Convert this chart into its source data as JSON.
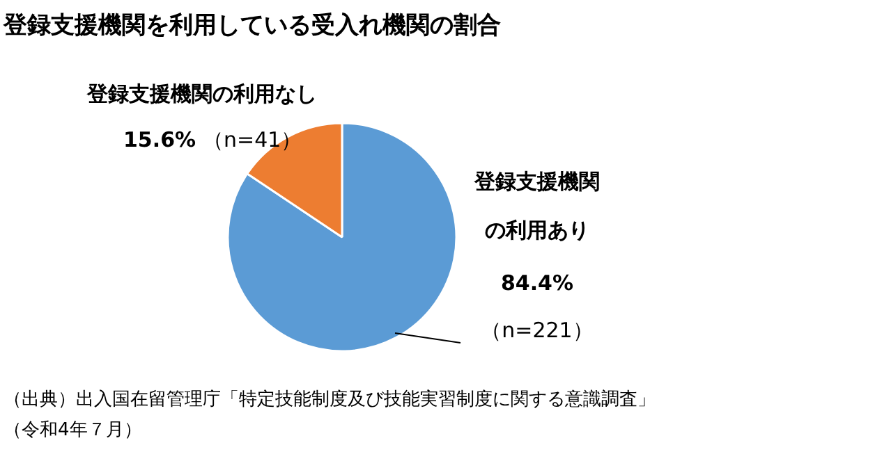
{
  "chart_data": {
    "type": "pie",
    "title": "登録支援機関を利用している受入れ機関の割合",
    "categories": [
      "登録支援機関の利用あり",
      "登録支援機関の利用なし"
    ],
    "values": [
      84.4,
      15.6
    ],
    "colors": [
      "#5b9bd5",
      "#ed7d31"
    ],
    "value_labels": [
      "84.4%",
      "15.6%"
    ],
    "annotations": [
      "（n=221）",
      "（n=41）",
      "（出典）出入国在留管理庁「特定技能制度及び技能実習制度に関する意識調査」（令和4年７月）"
    ]
  }
}
